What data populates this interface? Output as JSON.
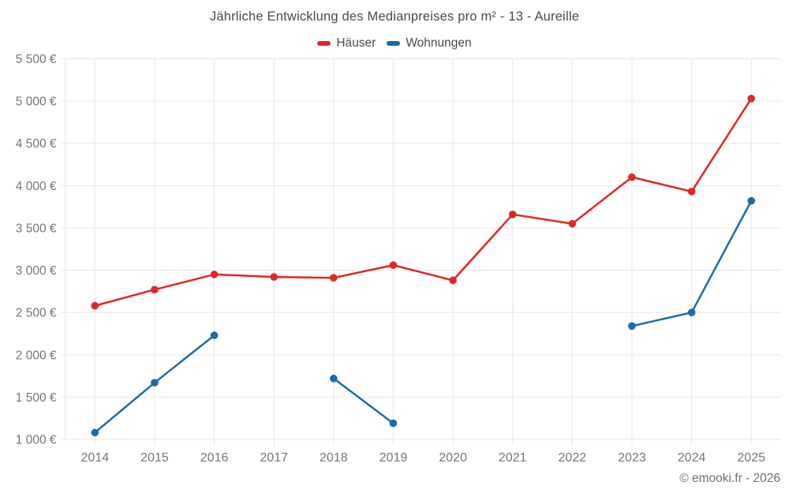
{
  "footer": "© emooki.fr - 2026",
  "colors": {
    "hauser_red": "#e12626",
    "wohnungen_blue": "#1b6ca8",
    "grid": "#e7e7e7",
    "axis_text": "#757575",
    "title_text": "#4a4a4a"
  },
  "chart_data": {
    "type": "line",
    "title": "Jährliche Entwicklung des Medianpreises pro m² - 13 - Aureille",
    "x": [
      2014,
      2015,
      2016,
      2017,
      2018,
      2019,
      2020,
      2021,
      2022,
      2023,
      2024,
      2025
    ],
    "series": [
      {
        "name": "Häuser",
        "color": "#e12626",
        "values": [
          2580,
          2770,
          2950,
          2920,
          2910,
          3060,
          2880,
          3660,
          3550,
          4100,
          3930,
          5030
        ]
      },
      {
        "name": "Wohnungen",
        "color": "#1b6ca8",
        "values": [
          1080,
          1670,
          2230,
          null,
          1720,
          1190,
          null,
          null,
          null,
          2340,
          2500,
          3820
        ]
      }
    ],
    "xlabel": "",
    "ylabel": "",
    "ylim": [
      1000,
      5500
    ],
    "ytick_step": 500,
    "ytick_labels": [
      "1 000 €",
      "1 500 €",
      "2 000 €",
      "2 500 €",
      "3 000 €",
      "3 500 €",
      "4 000 €",
      "4 500 €",
      "5 000 €",
      "5 500 €"
    ],
    "xtick_labels": [
      "2014",
      "2015",
      "2016",
      "2017",
      "2018",
      "2019",
      "2020",
      "2021",
      "2022",
      "2023",
      "2024",
      "2025"
    ],
    "grid": true,
    "legend_position": "top",
    "currency_suffix": " €"
  }
}
